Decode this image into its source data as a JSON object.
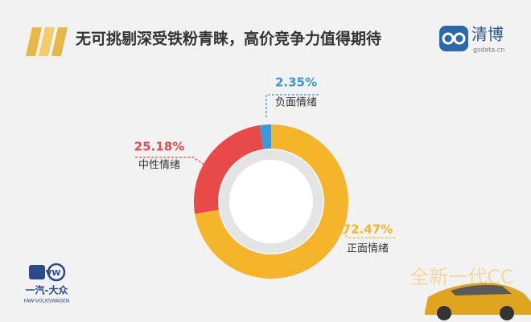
{
  "chart_data": {
    "type": "donut",
    "title": "无可挑剔深受铁粉青睐，高价竞争力值得期待",
    "categories": [
      "正面情绪",
      "中性情绪",
      "负面情绪"
    ],
    "values": [
      72.47,
      25.18,
      2.35
    ],
    "value_labels": [
      "72.47%",
      "25.18%",
      "2.35%"
    ],
    "colors": [
      "#f5b52a",
      "#e84a4a",
      "#3a9ad9"
    ]
  },
  "logo": {
    "name": "清博",
    "site": "gsdata.cn"
  },
  "footer": {
    "brand": "一汽-大众",
    "brand_en": "FAW-VOLKSWAGEN",
    "product": "全新一代CC"
  }
}
